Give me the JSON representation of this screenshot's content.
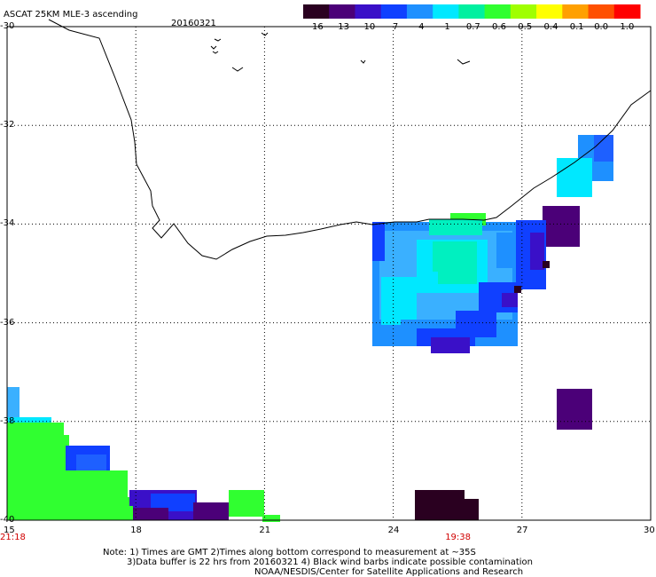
{
  "header": {
    "title": "ASCAT 25KM MLE-3 ascending",
    "date": "20160321"
  },
  "colorbar": {
    "labels": [
      "-16",
      "-13",
      "-10",
      "-7",
      "-4",
      "-1",
      "-0.7",
      "-0.6",
      "-0.5",
      "-0.4",
      "-0.1",
      "0.0",
      "1.0"
    ],
    "colors": [
      "#2a0020",
      "#4b0078",
      "#3a10c8",
      "#1040ff",
      "#1e90ff",
      "#00e8ff",
      "#00f0a0",
      "#30ff30",
      "#a0ff00",
      "#ffff00",
      "#ffa000",
      "#ff5000",
      "#ff0000"
    ]
  },
  "axes": {
    "lon_labels": [
      "15",
      "18",
      "21",
      "24",
      "27",
      "30"
    ],
    "lat_labels": [
      "-30",
      "-32",
      "-34",
      "-36",
      "-38",
      "-40"
    ],
    "lon_range": [
      15,
      30
    ],
    "lat_range": [
      -40,
      -30
    ],
    "grid": true
  },
  "time_labels": [
    {
      "text": "21:18",
      "lon": 15
    },
    {
      "text": "19:38",
      "lon": 25.5
    }
  ],
  "notes": {
    "line1": "Note: 1) Times are GMT 2)Times along bottom correspond to measurement at ~35S",
    "line2": "3)Data buffer is 22 hrs from 20160321 4) Black wind barbs indicate possible contamination",
    "line3": "NOAA/NESDIS/Center for Satellite Applications and Research"
  }
}
